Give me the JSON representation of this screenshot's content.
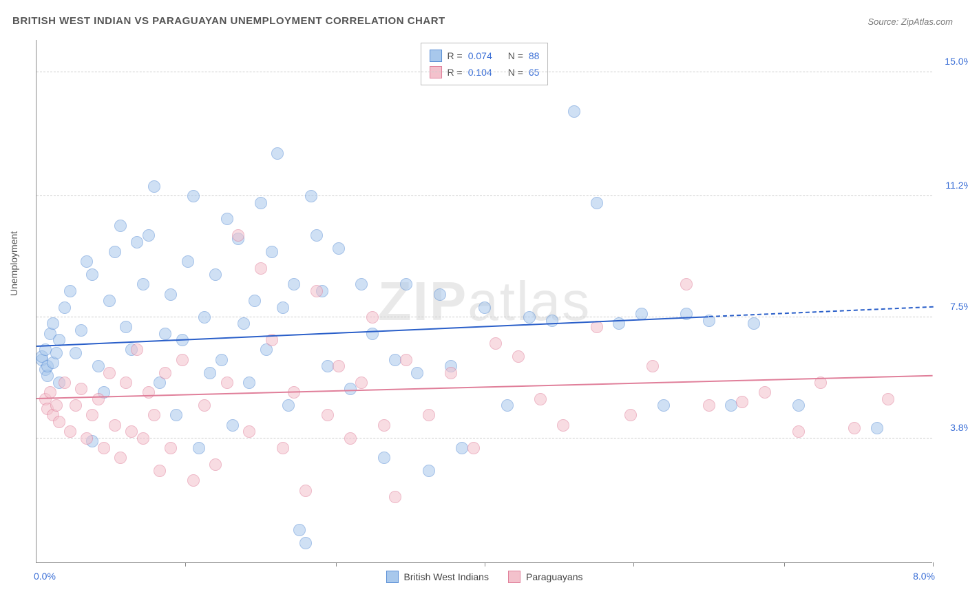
{
  "title": "BRITISH WEST INDIAN VS PARAGUAYAN UNEMPLOYMENT CORRELATION CHART",
  "source": "Source: ZipAtlas.com",
  "ylabel": "Unemployment",
  "watermark_bold": "ZIP",
  "watermark_thin": "atlas",
  "chart": {
    "type": "scatter",
    "xlim": [
      0.0,
      8.0
    ],
    "ylim": [
      0.0,
      16.0
    ],
    "yticks": [
      3.8,
      7.5,
      11.2,
      15.0
    ],
    "ytick_labels": [
      "3.8%",
      "7.5%",
      "11.2%",
      "15.0%"
    ],
    "ytick_color": "#3b6fd6",
    "xticks": [
      1.33,
      2.67,
      4.0,
      5.33,
      6.67,
      8.0
    ],
    "xlim_labels": [
      "0.0%",
      "8.0%"
    ],
    "xlim_label_color": "#3b6fd6",
    "grid_color": "#cccccc",
    "background_color": "#ffffff",
    "point_radius": 9,
    "point_opacity": 0.55,
    "series": [
      {
        "name": "British West Indians",
        "color_fill": "#a8c8ec",
        "color_stroke": "#5b8fd6",
        "R": "0.074",
        "N": "88",
        "trend": {
          "x1": 0.0,
          "y1": 6.6,
          "x2": 6.0,
          "y2": 7.5,
          "color": "#2a5fc9",
          "width": 2
        },
        "trend_ext": {
          "x1": 6.0,
          "y1": 7.5,
          "x2": 8.0,
          "y2": 7.8,
          "color": "#2a5fc9",
          "width": 2
        },
        "points": [
          [
            0.05,
            6.2
          ],
          [
            0.05,
            6.3
          ],
          [
            0.08,
            6.5
          ],
          [
            0.08,
            5.9
          ],
          [
            0.1,
            5.7
          ],
          [
            0.1,
            6.0
          ],
          [
            0.12,
            7.0
          ],
          [
            0.15,
            7.3
          ],
          [
            0.15,
            6.1
          ],
          [
            0.18,
            6.4
          ],
          [
            0.2,
            5.5
          ],
          [
            0.2,
            6.8
          ],
          [
            0.25,
            7.8
          ],
          [
            0.3,
            8.3
          ],
          [
            0.35,
            6.4
          ],
          [
            0.4,
            7.1
          ],
          [
            0.45,
            9.2
          ],
          [
            0.5,
            8.8
          ],
          [
            0.5,
            3.7
          ],
          [
            0.55,
            6.0
          ],
          [
            0.6,
            5.2
          ],
          [
            0.65,
            8.0
          ],
          [
            0.7,
            9.5
          ],
          [
            0.75,
            10.3
          ],
          [
            0.8,
            7.2
          ],
          [
            0.85,
            6.5
          ],
          [
            0.9,
            9.8
          ],
          [
            0.95,
            8.5
          ],
          [
            1.0,
            10.0
          ],
          [
            1.05,
            11.5
          ],
          [
            1.1,
            5.5
          ],
          [
            1.15,
            7.0
          ],
          [
            1.2,
            8.2
          ],
          [
            1.25,
            4.5
          ],
          [
            1.3,
            6.8
          ],
          [
            1.35,
            9.2
          ],
          [
            1.4,
            11.2
          ],
          [
            1.45,
            3.5
          ],
          [
            1.5,
            7.5
          ],
          [
            1.55,
            5.8
          ],
          [
            1.6,
            8.8
          ],
          [
            1.65,
            6.2
          ],
          [
            1.7,
            10.5
          ],
          [
            1.75,
            4.2
          ],
          [
            1.8,
            9.9
          ],
          [
            1.85,
            7.3
          ],
          [
            1.9,
            5.5
          ],
          [
            1.95,
            8.0
          ],
          [
            2.0,
            11.0
          ],
          [
            2.05,
            6.5
          ],
          [
            2.1,
            9.5
          ],
          [
            2.15,
            12.5
          ],
          [
            2.2,
            7.8
          ],
          [
            2.25,
            4.8
          ],
          [
            2.3,
            8.5
          ],
          [
            2.35,
            1.0
          ],
          [
            2.4,
            0.6
          ],
          [
            2.45,
            11.2
          ],
          [
            2.5,
            10.0
          ],
          [
            2.55,
            8.3
          ],
          [
            2.6,
            6.0
          ],
          [
            2.7,
            9.6
          ],
          [
            2.8,
            5.3
          ],
          [
            2.9,
            8.5
          ],
          [
            3.0,
            7.0
          ],
          [
            3.1,
            3.2
          ],
          [
            3.2,
            6.2
          ],
          [
            3.3,
            8.5
          ],
          [
            3.4,
            5.8
          ],
          [
            3.5,
            2.8
          ],
          [
            3.6,
            8.2
          ],
          [
            3.7,
            6.0
          ],
          [
            3.8,
            3.5
          ],
          [
            4.0,
            7.8
          ],
          [
            4.2,
            4.8
          ],
          [
            4.4,
            7.5
          ],
          [
            4.6,
            7.4
          ],
          [
            4.8,
            13.8
          ],
          [
            5.0,
            11.0
          ],
          [
            5.2,
            7.3
          ],
          [
            5.4,
            7.6
          ],
          [
            5.6,
            4.8
          ],
          [
            5.8,
            7.6
          ],
          [
            6.0,
            7.4
          ],
          [
            6.2,
            4.8
          ],
          [
            6.4,
            7.3
          ],
          [
            6.8,
            4.8
          ],
          [
            7.5,
            4.1
          ]
        ]
      },
      {
        "name": "Paraguayans",
        "color_fill": "#f3c1cc",
        "color_stroke": "#e07f9a",
        "R": "0.104",
        "N": "65",
        "trend": {
          "x1": 0.0,
          "y1": 5.0,
          "x2": 8.0,
          "y2": 5.7,
          "color": "#e07f9a",
          "width": 2
        },
        "points": [
          [
            0.08,
            5.0
          ],
          [
            0.1,
            4.7
          ],
          [
            0.12,
            5.2
          ],
          [
            0.15,
            4.5
          ],
          [
            0.18,
            4.8
          ],
          [
            0.2,
            4.3
          ],
          [
            0.25,
            5.5
          ],
          [
            0.3,
            4.0
          ],
          [
            0.35,
            4.8
          ],
          [
            0.4,
            5.3
          ],
          [
            0.45,
            3.8
          ],
          [
            0.5,
            4.5
          ],
          [
            0.55,
            5.0
          ],
          [
            0.6,
            3.5
          ],
          [
            0.65,
            5.8
          ],
          [
            0.7,
            4.2
          ],
          [
            0.75,
            3.2
          ],
          [
            0.8,
            5.5
          ],
          [
            0.85,
            4.0
          ],
          [
            0.9,
            6.5
          ],
          [
            0.95,
            3.8
          ],
          [
            1.0,
            5.2
          ],
          [
            1.05,
            4.5
          ],
          [
            1.1,
            2.8
          ],
          [
            1.15,
            5.8
          ],
          [
            1.2,
            3.5
          ],
          [
            1.3,
            6.2
          ],
          [
            1.4,
            2.5
          ],
          [
            1.5,
            4.8
          ],
          [
            1.6,
            3.0
          ],
          [
            1.7,
            5.5
          ],
          [
            1.8,
            10.0
          ],
          [
            1.9,
            4.0
          ],
          [
            2.0,
            9.0
          ],
          [
            2.1,
            6.8
          ],
          [
            2.2,
            3.5
          ],
          [
            2.3,
            5.2
          ],
          [
            2.4,
            2.2
          ],
          [
            2.5,
            8.3
          ],
          [
            2.6,
            4.5
          ],
          [
            2.7,
            6.0
          ],
          [
            2.8,
            3.8
          ],
          [
            2.9,
            5.5
          ],
          [
            3.0,
            7.5
          ],
          [
            3.1,
            4.2
          ],
          [
            3.2,
            2.0
          ],
          [
            3.3,
            6.2
          ],
          [
            3.5,
            4.5
          ],
          [
            3.7,
            5.8
          ],
          [
            3.9,
            3.5
          ],
          [
            4.1,
            6.7
          ],
          [
            4.3,
            6.3
          ],
          [
            4.5,
            5.0
          ],
          [
            4.7,
            4.2
          ],
          [
            5.0,
            7.2
          ],
          [
            5.3,
            4.5
          ],
          [
            5.5,
            6.0
          ],
          [
            5.8,
            8.5
          ],
          [
            6.0,
            4.8
          ],
          [
            6.3,
            4.9
          ],
          [
            6.5,
            5.2
          ],
          [
            6.8,
            4.0
          ],
          [
            7.0,
            5.5
          ],
          [
            7.3,
            4.1
          ],
          [
            7.6,
            5.0
          ]
        ]
      }
    ]
  },
  "legend_top": {
    "r_label": "R =",
    "n_label": "N =",
    "value_color": "#3b6fd6",
    "label_color": "#555555"
  },
  "legend_bottom_items": [
    "British West Indians",
    "Paraguayans"
  ]
}
